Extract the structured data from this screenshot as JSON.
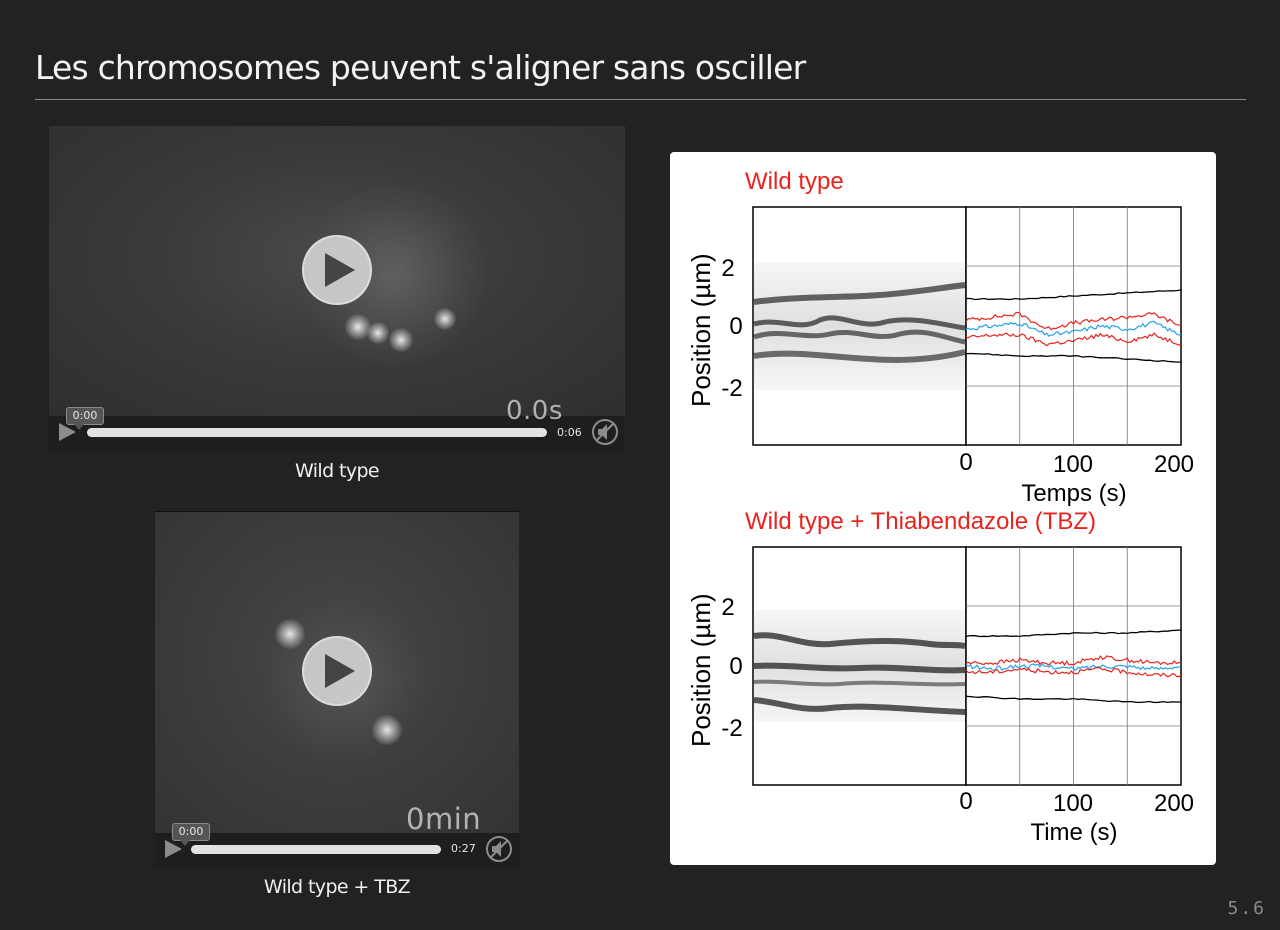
{
  "slide": {
    "title": "Les chromosomes peuvent s'aligner sans osciller",
    "number": "5.6"
  },
  "video1": {
    "overlay_time": "0.0s",
    "current_time": "0:00",
    "duration": "0:06",
    "progress": 0,
    "caption": "Wild type"
  },
  "video2": {
    "overlay_time": "0min",
    "current_time": "0:00",
    "duration": "0:27",
    "progress": 0,
    "caption": "Wild type + TBZ"
  },
  "figure": {
    "top": {
      "title": "Wild type",
      "ylabel": "Position (µm)",
      "xlabel": "Temps (s)",
      "yticks": [
        "2",
        "0",
        "-2"
      ],
      "xticks": [
        "0",
        "100",
        "200"
      ]
    },
    "bottom": {
      "title": "Wild type + Thiabendazole (TBZ)",
      "ylabel": "Position (µm)",
      "xlabel": "Time (s)",
      "yticks": [
        "2",
        "0",
        "-2"
      ],
      "xticks": [
        "0",
        "100",
        "200"
      ]
    },
    "colors": {
      "title": "#e8241f",
      "red": "#e8241f",
      "blue": "#22a3e8",
      "black": "#000000"
    }
  },
  "chart_data": [
    {
      "type": "line",
      "title": "Wild type",
      "xlabel": "Temps (s)",
      "ylabel": "Position (µm)",
      "xlim": [
        0,
        200
      ],
      "ylim": [
        -4,
        4
      ],
      "grid": true,
      "series": [
        {
          "color": "black",
          "x": [
            0,
            50,
            100,
            150,
            200
          ],
          "y": [
            0.9,
            0.9,
            1.0,
            1.1,
            1.2
          ]
        },
        {
          "color": "red",
          "x": [
            0,
            25,
            50,
            75,
            100,
            125,
            150,
            175,
            200
          ],
          "y": [
            0.2,
            0.3,
            0.4,
            -0.1,
            0.1,
            0.2,
            0.3,
            0.4,
            0.0
          ]
        },
        {
          "color": "blue",
          "x": [
            0,
            25,
            50,
            75,
            100,
            125,
            150,
            175,
            200
          ],
          "y": [
            -0.1,
            0.0,
            0.1,
            -0.3,
            -0.2,
            0.0,
            -0.1,
            0.1,
            -0.3
          ]
        },
        {
          "color": "red",
          "x": [
            0,
            25,
            50,
            75,
            100,
            125,
            150,
            175,
            200
          ],
          "y": [
            -0.4,
            -0.3,
            -0.3,
            -0.6,
            -0.5,
            -0.3,
            -0.5,
            -0.3,
            -0.6
          ]
        },
        {
          "color": "black",
          "x": [
            0,
            50,
            100,
            150,
            200
          ],
          "y": [
            -0.9,
            -1.0,
            -1.0,
            -1.1,
            -1.2
          ]
        }
      ]
    },
    {
      "type": "line",
      "title": "Wild type + Thiabendazole (TBZ)",
      "xlabel": "Time (s)",
      "ylabel": "Position (µm)",
      "xlim": [
        0,
        200
      ],
      "ylim": [
        -4,
        4
      ],
      "grid": true,
      "series": [
        {
          "color": "black",
          "x": [
            0,
            50,
            100,
            150,
            200
          ],
          "y": [
            1.0,
            1.0,
            1.1,
            1.1,
            1.2
          ]
        },
        {
          "color": "red",
          "x": [
            0,
            25,
            50,
            75,
            100,
            125,
            150,
            175,
            200
          ],
          "y": [
            0.1,
            0.1,
            0.2,
            0.1,
            0.1,
            0.3,
            0.2,
            0.1,
            0.1
          ]
        },
        {
          "color": "blue",
          "x": [
            0,
            25,
            50,
            75,
            100,
            125,
            150,
            175,
            200
          ],
          "y": [
            0.0,
            -0.1,
            0.0,
            0.0,
            -0.1,
            0.0,
            0.0,
            -0.1,
            0.0
          ]
        },
        {
          "color": "red",
          "x": [
            0,
            25,
            50,
            75,
            100,
            125,
            150,
            175,
            200
          ],
          "y": [
            -0.2,
            -0.2,
            -0.1,
            -0.2,
            -0.2,
            -0.1,
            -0.2,
            -0.3,
            -0.3
          ]
        },
        {
          "color": "black",
          "x": [
            0,
            50,
            100,
            150,
            200
          ],
          "y": [
            -1.0,
            -1.1,
            -1.1,
            -1.2,
            -1.2
          ]
        }
      ]
    }
  ]
}
